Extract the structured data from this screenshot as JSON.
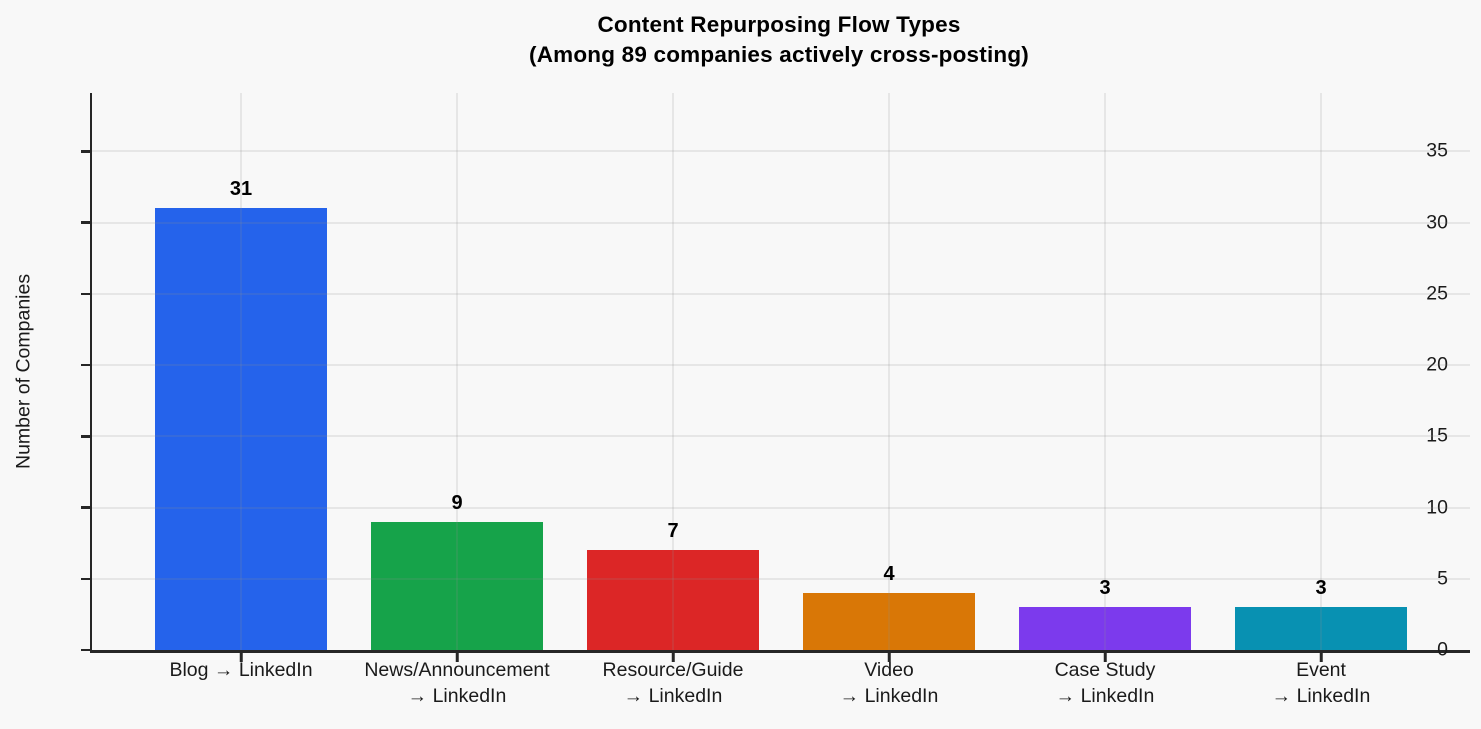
{
  "title": "Content Repurposing Flow Types",
  "subtitle": "(Among 89 companies actively cross-posting)",
  "chart_data": {
    "type": "bar",
    "title": "Content Repurposing Flow Types",
    "subtitle": "(Among 89 companies actively cross-posting)",
    "categories": [
      "Blog → LinkedIn",
      "News/Announcement\n→ LinkedIn",
      "Resource/Guide\n→ LinkedIn",
      "Video\n→ LinkedIn",
      "Case Study\n→ LinkedIn",
      "Event\n→ LinkedIn"
    ],
    "values": [
      31,
      9,
      7,
      4,
      3,
      3
    ],
    "value_labels": [
      "31",
      "9",
      "7",
      "4",
      "3",
      "3"
    ],
    "bar_colors": [
      "#2563eb",
      "#16a34a",
      "#dc2626",
      "#d97706",
      "#7c3aed",
      "#0891b2"
    ],
    "xlabel": "",
    "ylabel": "Number of Companies",
    "yticks": [
      0,
      5,
      10,
      15,
      20,
      25,
      30,
      35
    ],
    "ylim": [
      0,
      39.1
    ],
    "grid": true,
    "legend": "none"
  },
  "style": {
    "background": "#f8f8f8",
    "grid_color": "rgba(140,140,140,0.17)",
    "axis_color": "#262626",
    "text_color": "#1a1a1a",
    "title_color": "#000000"
  }
}
